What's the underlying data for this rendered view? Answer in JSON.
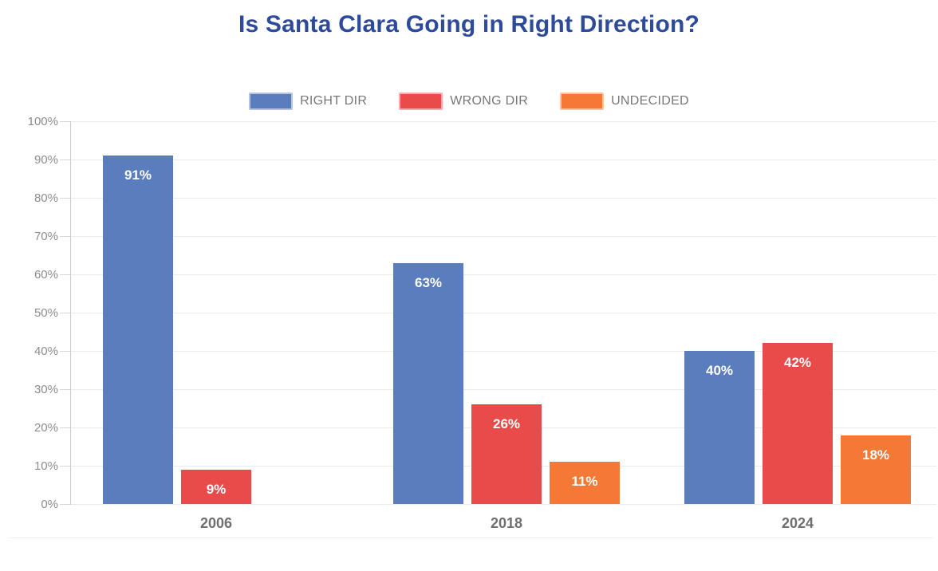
{
  "title": "Is Santa Clara Going in Right Direction?",
  "legend": {
    "items": [
      {
        "label": "RIGHT DIR",
        "color": "#5A7DBE"
      },
      {
        "label": "WRONG DIR",
        "color": "#E94B4B"
      },
      {
        "label": "UNDECIDED",
        "color": "#F57936"
      }
    ]
  },
  "chart_data": {
    "type": "bar",
    "title": "Is Santa Clara Going in Right Direction?",
    "categories": [
      "2006",
      "2018",
      "2024"
    ],
    "series": [
      {
        "name": "RIGHT DIR",
        "color": "#5A7DBE",
        "values": [
          91,
          63,
          40
        ]
      },
      {
        "name": "WRONG DIR",
        "color": "#E94B4B",
        "values": [
          9,
          26,
          42
        ]
      },
      {
        "name": "UNDECIDED",
        "color": "#F57936",
        "values": [
          null,
          11,
          18
        ]
      }
    ],
    "xlabel": "",
    "ylabel": "",
    "ylim": [
      0,
      100
    ],
    "ytick_step": 10,
    "ytick_labels": [
      "0%",
      "10%",
      "20%",
      "30%",
      "40%",
      "50%",
      "60%",
      "70%",
      "80%",
      "90%",
      "100%"
    ],
    "bar_label_format": "percent",
    "grid": true,
    "grid_axis": "y",
    "legend_position": "top"
  },
  "colors": {
    "title": "#2E4A9B",
    "axis_label": "#8C8C8C",
    "category_label": "#6F6F6F",
    "gridline": "#E9EBF1",
    "bar_value_text": "#FFFFFF"
  }
}
